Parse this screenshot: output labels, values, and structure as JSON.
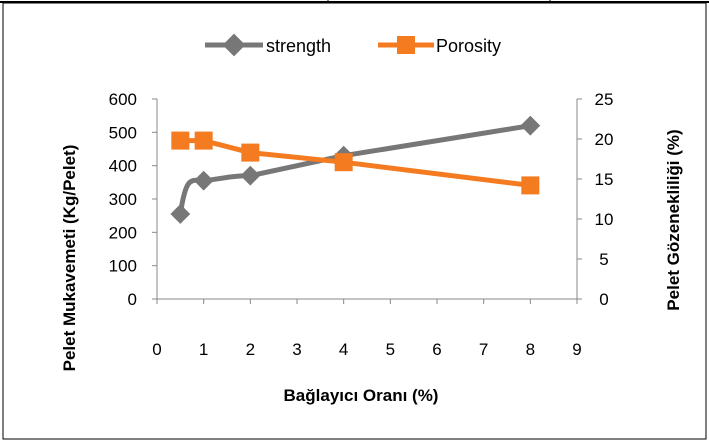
{
  "chart_data": {
    "type": "line",
    "xlabel": "Bağlayıcı Oranı (%)",
    "ylabel": "Pelet Mukavemeti (Kg/Pelet)",
    "y2label": "Pelet  Gözenekliliği (%)",
    "xlim": [
      0,
      9
    ],
    "ylim": [
      0,
      600
    ],
    "y2lim": [
      0,
      25
    ],
    "xticks": [
      "0",
      "1",
      "2",
      "3",
      "4",
      "5",
      "6",
      "7",
      "8",
      "9"
    ],
    "yticks": [
      "0",
      "100",
      "200",
      "300",
      "400",
      "500",
      "600"
    ],
    "y2ticks": [
      "0",
      "5",
      "10",
      "15",
      "20",
      "25"
    ],
    "grid": false,
    "legend_position": "top",
    "series": [
      {
        "name": "strength",
        "axis": "left",
        "marker": "diamond",
        "color": "#777777",
        "x": [
          0.5,
          1,
          2,
          4,
          8
        ],
        "y": [
          255,
          355,
          370,
          430,
          520
        ]
      },
      {
        "name": "Porosity",
        "axis": "right",
        "marker": "square",
        "color": "#F47B20",
        "x": [
          0.5,
          1,
          2,
          4,
          8
        ],
        "y": [
          19.8,
          19.8,
          18.3,
          17.1,
          14.2
        ]
      }
    ]
  }
}
